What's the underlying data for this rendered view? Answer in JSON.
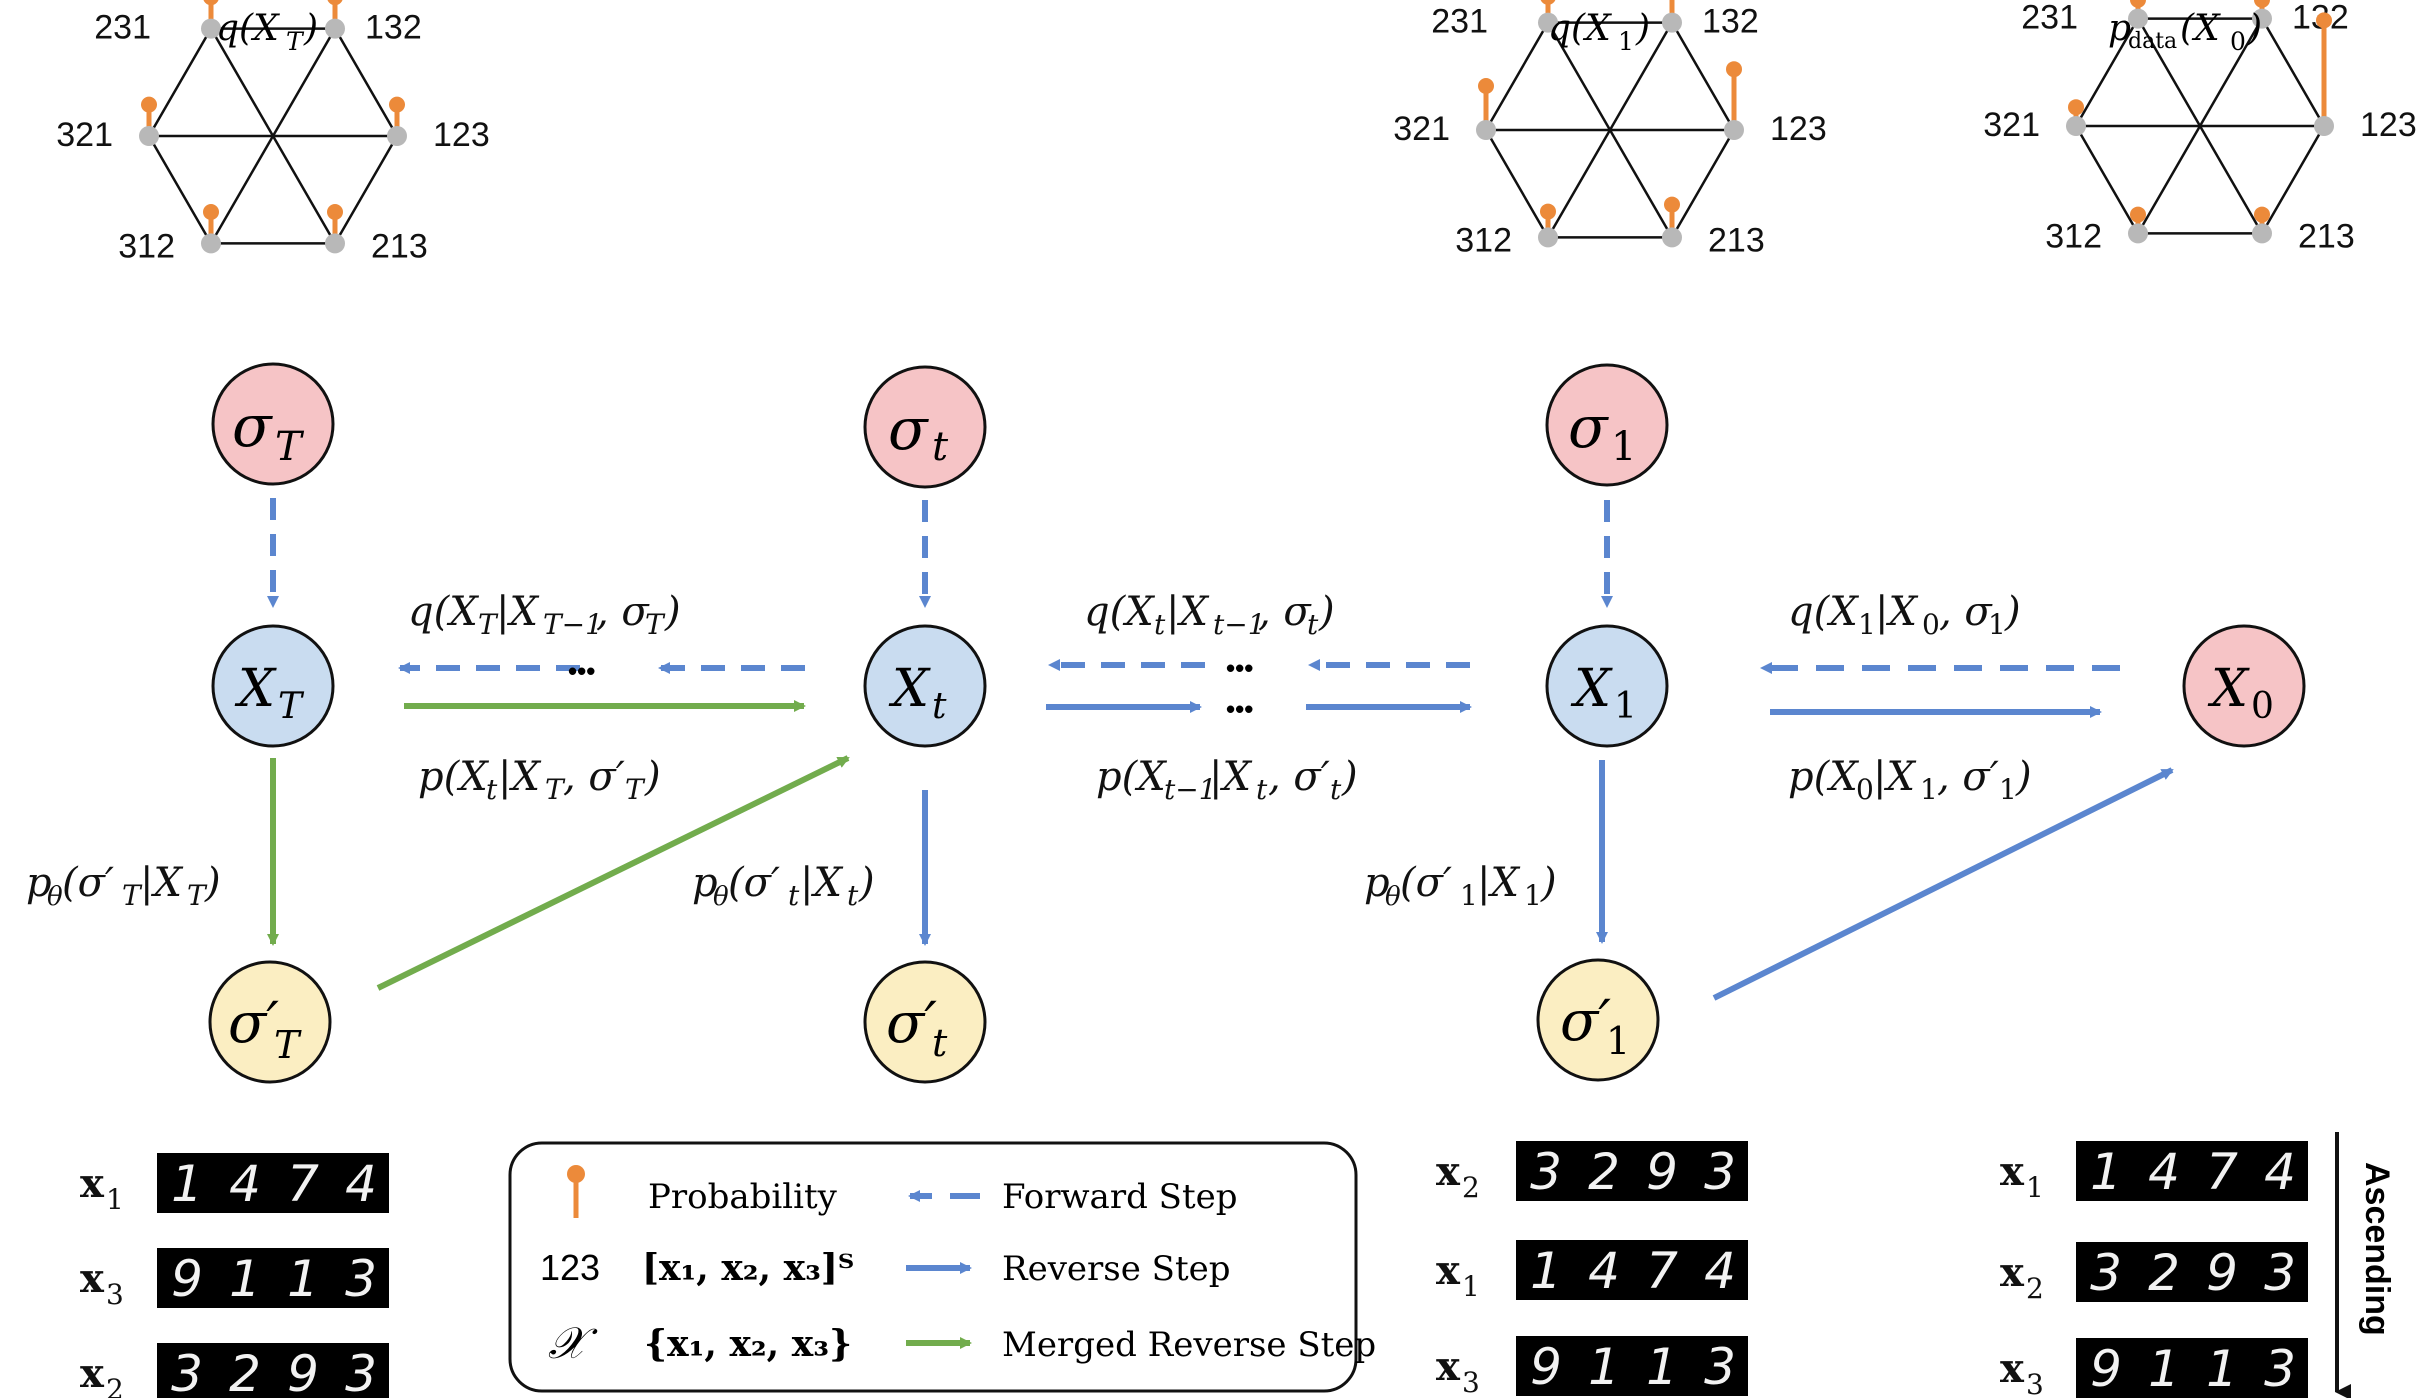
{
  "colors": {
    "sigma_node": "#f6c4c6",
    "x_node": "#c9dcf0",
    "sigma_prime_node": "#fbeec2",
    "x0_node": "#f6c4c6",
    "node_stroke": "#111111",
    "forward_arrow": "#5b86cf",
    "reverse_arrow": "#5b86cf",
    "merged_arrow": "#72ac4d",
    "probability_pin": "#ec8a3a",
    "vertex": "#b8b8b8"
  },
  "hexagons": [
    {
      "title": "q(X_T)",
      "labels": [
        "231",
        "132",
        "321",
        "123",
        "312",
        "213"
      ],
      "probabilities": [
        0.55,
        0.55,
        0.55,
        0.55,
        0.55,
        0.55
      ]
    },
    {
      "title": "q(X_1)",
      "labels": [
        "231",
        "132",
        "321",
        "123",
        "312",
        "213"
      ],
      "probabilities": [
        0.35,
        0.6,
        1.0,
        1.6,
        0.35,
        0.6
      ]
    },
    {
      "title": "p_data(X_0)",
      "labels": [
        "231",
        "132",
        "321",
        "123",
        "312",
        "213"
      ],
      "probabilities": [
        0.1,
        0.1,
        0.1,
        3.2,
        0.1,
        0.1
      ]
    }
  ],
  "nodes": {
    "sigma_T": "σ",
    "sigma_T_sub": "T",
    "sigma_t": "σ",
    "sigma_t_sub": "t",
    "sigma_1": "σ",
    "sigma_1_sub": "1",
    "X_T": "X",
    "X_T_sub": "T",
    "X_t": "X",
    "X_t_sub": "t",
    "X_1": "X",
    "X_1_sub": "1",
    "X_0": "X",
    "X_0_sub": "0",
    "sigma_prime_T": "σ′",
    "sigma_prime_T_sub": "T",
    "sigma_prime_t": "σ′",
    "sigma_prime_t_sub": "t",
    "sigma_prime_1": "σ′",
    "sigma_prime_1_sub": "1"
  },
  "equations": {
    "q_T": "q(X_T|X_{T−1}, σ_T)",
    "q_t": "q(X_t|X_{t−1}, σ_t)",
    "q_1": "q(X_1|X_0, σ_1)",
    "p_merged": "p(X_t|X_T, σ′_T)",
    "p_t": "p(X_{t−1}|X_t, σ′_t)",
    "p_1": "p(X_0|X_1, σ′_1)",
    "ptheta_T": "p_θ(σ′_T|X_T)",
    "ptheta_t": "p_θ(σ′_t|X_t)",
    "ptheta_1": "p_θ(σ′_1|X_1)",
    "ellipsis": "•••"
  },
  "legend": {
    "probability": "Probability",
    "forward_step": "Forward Step",
    "reverse_step": "Reverse Step",
    "merged_reverse_step": "Merged Reverse Step",
    "code_123": "123",
    "vector": "[x₁, x₂, x₃]ᵀ",
    "script_x": "𝒳",
    "set": "{x₁, x₂, x₃}"
  },
  "digit_groups": [
    {
      "rows": [
        {
          "label": "x",
          "sub": "1",
          "digits": "1474"
        },
        {
          "label": "x",
          "sub": "3",
          "digits": "9113"
        },
        {
          "label": "x",
          "sub": "2",
          "digits": "3293"
        }
      ]
    },
    {
      "rows": [
        {
          "label": "x",
          "sub": "2",
          "digits": "3293"
        },
        {
          "label": "x",
          "sub": "1",
          "digits": "1474"
        },
        {
          "label": "x",
          "sub": "3",
          "digits": "9113"
        }
      ]
    },
    {
      "rows": [
        {
          "label": "x",
          "sub": "1",
          "digits": "1474"
        },
        {
          "label": "x",
          "sub": "2",
          "digits": "3293"
        },
        {
          "label": "x",
          "sub": "3",
          "digits": "9113"
        }
      ]
    }
  ],
  "ascending_label": "Ascending"
}
